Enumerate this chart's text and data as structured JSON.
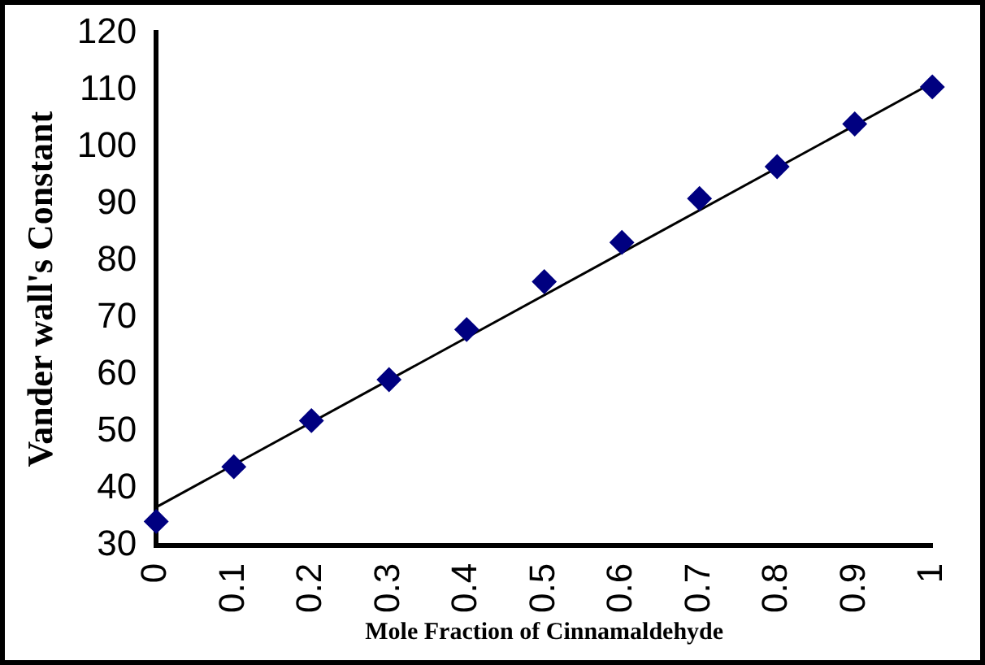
{
  "chart_data": {
    "type": "scatter",
    "xlabel": "Mole Fraction of Cinnamaldehyde",
    "ylabel": "Vander wall's Constant",
    "x": [
      0,
      0.1,
      0.2,
      0.3,
      0.4,
      0.5,
      0.6,
      0.7,
      0.8,
      0.9,
      1
    ],
    "series": [
      {
        "color": "#000080",
        "marker": "diamond",
        "values": [
          34.2,
          43.8,
          51.9,
          59.1,
          67.9,
          76.3,
          83.2,
          90.9,
          96.5,
          104.0,
          110.5
        ]
      },
      {
        "type": "line",
        "color": "#000000",
        "marker": "none",
        "line_style": "solid",
        "x": [
          0,
          1
        ],
        "values": [
          36.7,
          111.2
        ]
      }
    ],
    "xlim": [
      0,
      1
    ],
    "xticks": [
      0,
      0.1,
      0.2,
      0.3,
      0.4,
      0.5,
      0.6,
      0.7,
      0.8,
      0.9,
      1
    ],
    "ylim": [
      30,
      120
    ],
    "yticks": [
      30,
      40,
      50,
      60,
      70,
      80,
      90,
      100,
      110,
      120
    ],
    "grid": false,
    "legend": false
  }
}
